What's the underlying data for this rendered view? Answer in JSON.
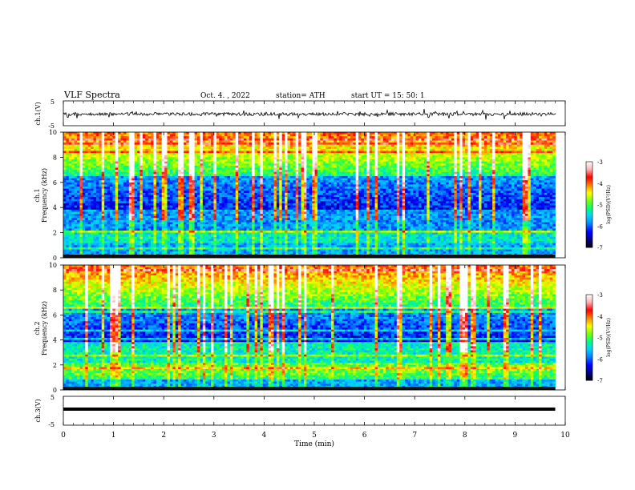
{
  "header": {
    "title": "VLF  Spectra",
    "date": "Oct. 4.  , 2022",
    "station": "station= ATH",
    "start": "start  UT  =   15: 50: 1"
  },
  "chart_data": [
    {
      "type": "line",
      "panel": "ch1-waveform",
      "ylabel": "ch.1(V)",
      "ylim": [
        -5,
        5
      ],
      "yticks": [
        "5",
        "-5"
      ],
      "x_range_min": [
        0,
        9.8
      ],
      "series": [
        {
          "values_note_mean": -0.3
        }
      ]
    },
    {
      "type": "heatmap",
      "panel": "ch1-spectrogram",
      "ylabel": "ch.1\nFrequency (kHz)",
      "ylim": [
        0,
        10
      ],
      "yticks": [
        "0",
        "2",
        "4",
        "6",
        "8",
        "10"
      ],
      "xlim": [
        0,
        10
      ],
      "data_x_extent": [
        0,
        9.8
      ],
      "colorbar": {
        "label": "log(PSD)(V²/Hz)",
        "range": [
          -7,
          -3
        ],
        "ticks": [
          "-3",
          "-4",
          "-5",
          "-6",
          "-7"
        ]
      }
    },
    {
      "type": "heatmap",
      "panel": "ch2-spectrogram",
      "ylabel": "ch.2\nFrequency (kHz)",
      "ylim": [
        0,
        10
      ],
      "yticks": [
        "0",
        "2",
        "4",
        "6",
        "8",
        "10"
      ],
      "xlim": [
        0,
        10
      ],
      "data_x_extent": [
        0,
        9.8
      ],
      "colorbar": {
        "label": "log(PSD)(V²/Hz)",
        "range": [
          -7,
          -3
        ],
        "ticks": [
          "-3",
          "-4",
          "-5",
          "-6",
          "-7"
        ]
      }
    },
    {
      "type": "line",
      "panel": "ch3-waveform",
      "ylabel": "ch.3(V)",
      "ylim": [
        -5,
        5
      ],
      "yticks": [
        "5",
        "-5"
      ],
      "series": [
        {
          "values_note_mean": -1.5
        }
      ]
    }
  ],
  "xaxis": {
    "label": "Time  (min)",
    "ticks": [
      "0",
      "1",
      "2",
      "3",
      "4",
      "5",
      "6",
      "7",
      "8",
      "9",
      "10"
    ]
  },
  "colors": {
    "colormap": [
      "#000000",
      "#00008b",
      "#0000ff",
      "#0080ff",
      "#00d0ff",
      "#00ff80",
      "#80ff00",
      "#ffff00",
      "#ff8000",
      "#ff0000",
      "#ffb0b0",
      "#ffffff"
    ]
  }
}
